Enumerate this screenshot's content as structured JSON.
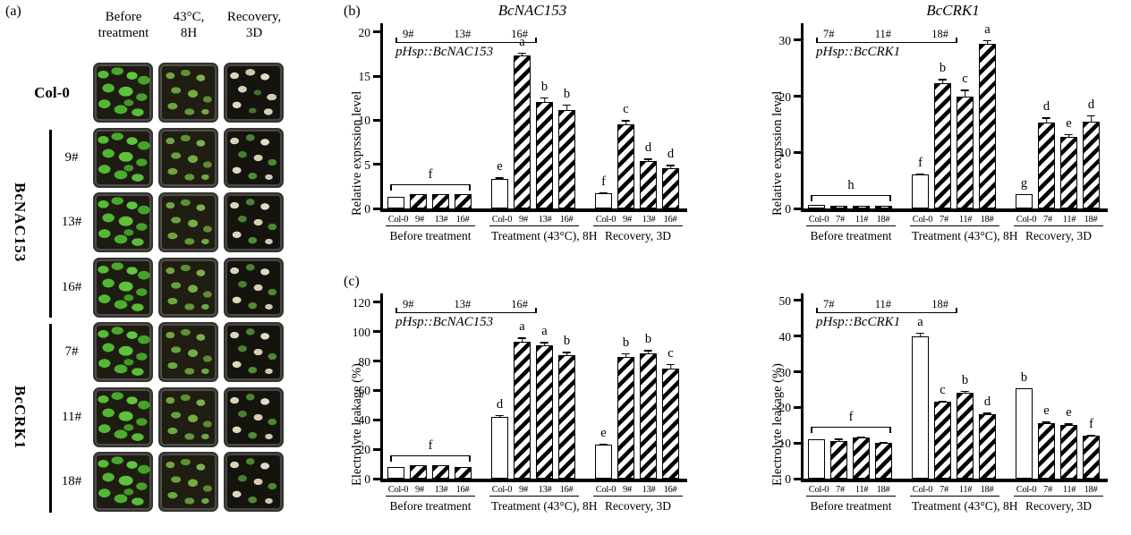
{
  "panel_a": {
    "label": "(a)",
    "col_headers": [
      {
        "line1": "Before",
        "line2": "treatment"
      },
      {
        "line1": "43°C,",
        "line2": "8H"
      },
      {
        "line1": "Recovery,",
        "line2": "3D"
      }
    ],
    "rows": [
      {
        "label": "Col-0",
        "bold": true
      },
      {
        "label": "9#"
      },
      {
        "label": "13#"
      },
      {
        "label": "16#"
      },
      {
        "label": "7#"
      },
      {
        "label": "11#"
      },
      {
        "label": "18#"
      }
    ],
    "groups": [
      {
        "label": "BcNAC153",
        "rows": [
          1,
          3
        ]
      },
      {
        "label": "BcCRK1",
        "rows": [
          4,
          6
        ]
      }
    ]
  },
  "panel_b_label": "(b)",
  "panel_c_label": "(c)",
  "chart_data": [
    {
      "type": "bar",
      "title": "BcNAC153",
      "ylabel": "Relative exprssion level",
      "ylim": [
        0,
        21
      ],
      "yticks": [
        0,
        5,
        10,
        15,
        20
      ],
      "annotation": {
        "lines": [
          "9#",
          "13#",
          "16#"
        ],
        "construct": "pHsp::BcNAC153"
      },
      "groups": [
        {
          "name": "Before treatment",
          "bracket_letter": "f",
          "bars": [
            {
              "label": "Col-0",
              "value": 1.3,
              "err": 0.1,
              "letter": "",
              "hatched": false
            },
            {
              "label": "9#",
              "value": 1.6,
              "err": 0.1,
              "letter": "",
              "hatched": true
            },
            {
              "label": "13#",
              "value": 1.6,
              "err": 0.1,
              "letter": "",
              "hatched": true
            },
            {
              "label": "16#",
              "value": 1.6,
              "err": 0.1,
              "letter": "",
              "hatched": true
            }
          ]
        },
        {
          "name": "Treatment (43°C), 8H",
          "bars": [
            {
              "label": "Col-0",
              "value": 3.4,
              "err": 0.15,
              "letter": "e",
              "hatched": false
            },
            {
              "label": "9#",
              "value": 17.4,
              "err": 0.3,
              "letter": "a",
              "hatched": true
            },
            {
              "label": "13#",
              "value": 12.1,
              "err": 0.5,
              "letter": "b",
              "hatched": true
            },
            {
              "label": "16#",
              "value": 11.2,
              "err": 0.6,
              "letter": "b",
              "hatched": true
            }
          ]
        },
        {
          "name": "Recovery, 3D",
          "bars": [
            {
              "label": "Col-0",
              "value": 1.7,
              "err": 0.15,
              "letter": "f",
              "hatched": false
            },
            {
              "label": "9#",
              "value": 9.5,
              "err": 0.5,
              "letter": "c",
              "hatched": true
            },
            {
              "label": "13#",
              "value": 5.4,
              "err": 0.25,
              "letter": "d",
              "hatched": true
            },
            {
              "label": "16#",
              "value": 4.6,
              "err": 0.35,
              "letter": "d",
              "hatched": true
            }
          ]
        }
      ]
    },
    {
      "type": "bar",
      "title": "BcCRK1",
      "ylabel": "Relative exprssion level",
      "ylim": [
        0,
        33
      ],
      "yticks": [
        0,
        10,
        20,
        30
      ],
      "annotation": {
        "lines": [
          "7#",
          "11#",
          "18#"
        ],
        "construct": "pHsp::BcCRK1"
      },
      "groups": [
        {
          "name": "Before treatment",
          "bracket_letter": "h",
          "bars": [
            {
              "label": "Col-0",
              "value": 0.7,
              "err": 0.05,
              "letter": "",
              "hatched": false
            },
            {
              "label": "7#",
              "value": 0.5,
              "err": 0.05,
              "letter": "",
              "hatched": true
            },
            {
              "label": "11#",
              "value": 0.5,
              "err": 0.05,
              "letter": "",
              "hatched": true
            },
            {
              "label": "18#",
              "value": 0.5,
              "err": 0.05,
              "letter": "",
              "hatched": true
            }
          ]
        },
        {
          "name": "Treatment (43°C), 8H",
          "bars": [
            {
              "label": "Col-0",
              "value": 6.0,
              "err": 0.2,
              "letter": "f",
              "hatched": false
            },
            {
              "label": "7#",
              "value": 22.3,
              "err": 0.8,
              "letter": "b",
              "hatched": true
            },
            {
              "label": "11#",
              "value": 20.0,
              "err": 1.2,
              "letter": "c",
              "hatched": true
            },
            {
              "label": "18#",
              "value": 29.3,
              "err": 0.7,
              "letter": "a",
              "hatched": true
            }
          ]
        },
        {
          "name": "Recovery, 3D",
          "bars": [
            {
              "label": "Col-0",
              "value": 2.5,
              "err": 0.15,
              "letter": "g",
              "hatched": false
            },
            {
              "label": "7#",
              "value": 15.3,
              "err": 0.9,
              "letter": "d",
              "hatched": true
            },
            {
              "label": "11#",
              "value": 12.8,
              "err": 0.5,
              "letter": "e",
              "hatched": true
            },
            {
              "label": "18#",
              "value": 15.5,
              "err": 1.1,
              "letter": "d",
              "hatched": true
            }
          ]
        }
      ]
    },
    {
      "type": "bar",
      "title": "",
      "ylabel": "Electrolyte leakage (%)",
      "ylim": [
        0,
        126
      ],
      "yticks": [
        0,
        20,
        40,
        60,
        80,
        100,
        120
      ],
      "annotation": {
        "lines": [
          "9#",
          "13#",
          "16#"
        ],
        "construct": "pHsp::BcNAC153"
      },
      "groups": [
        {
          "name": "Before treatment",
          "bracket_letter": "f",
          "bars": [
            {
              "label": "Col-0",
              "value": 8,
              "err": 0.5,
              "letter": "",
              "hatched": false
            },
            {
              "label": "9#",
              "value": 9,
              "err": 0.5,
              "letter": "",
              "hatched": true
            },
            {
              "label": "13#",
              "value": 9,
              "err": 0.5,
              "letter": "",
              "hatched": true
            },
            {
              "label": "16#",
              "value": 8,
              "err": 0.5,
              "letter": "",
              "hatched": true
            }
          ]
        },
        {
          "name": "Treatment (43°C), 8H",
          "bars": [
            {
              "label": "Col-0",
              "value": 42,
              "err": 1.5,
              "letter": "d",
              "hatched": false
            },
            {
              "label": "9#",
              "value": 93,
              "err": 3,
              "letter": "a",
              "hatched": true
            },
            {
              "label": "13#",
              "value": 91,
              "err": 2,
              "letter": "a",
              "hatched": true
            },
            {
              "label": "16#",
              "value": 84,
              "err": 2.5,
              "letter": "b",
              "hatched": true
            }
          ]
        },
        {
          "name": "Recovery, 3D",
          "bars": [
            {
              "label": "Col-0",
              "value": 23,
              "err": 1,
              "letter": "e",
              "hatched": false
            },
            {
              "label": "9#",
              "value": 83,
              "err": 2.5,
              "letter": "b",
              "hatched": true
            },
            {
              "label": "13#",
              "value": 85,
              "err": 2.5,
              "letter": "b",
              "hatched": true
            },
            {
              "label": "16#",
              "value": 75,
              "err": 3,
              "letter": "c",
              "hatched": true
            }
          ]
        }
      ]
    },
    {
      "type": "bar",
      "title": "",
      "ylabel": "Electrolyte leakage (%)",
      "ylim": [
        0,
        52
      ],
      "yticks": [
        0,
        10,
        20,
        30,
        40,
        50
      ],
      "annotation": {
        "lines": [
          "7#",
          "11#",
          "18#"
        ],
        "construct": "pHsp::BcCRK1"
      },
      "groups": [
        {
          "name": "Before treatment",
          "bracket_letter": "f",
          "bars": [
            {
              "label": "Col-0",
              "value": 11,
              "err": 0.3,
              "letter": "",
              "hatched": false
            },
            {
              "label": "7#",
              "value": 10.5,
              "err": 0.8,
              "letter": "",
              "hatched": true
            },
            {
              "label": "11#",
              "value": 11.5,
              "err": 0.4,
              "letter": "",
              "hatched": true
            },
            {
              "label": "18#",
              "value": 10,
              "err": 0.4,
              "letter": "",
              "hatched": true
            }
          ]
        },
        {
          "name": "Treatment (43°C), 8H",
          "bars": [
            {
              "label": "Col-0",
              "value": 40,
              "err": 1,
              "letter": "a",
              "hatched": false
            },
            {
              "label": "7#",
              "value": 21.5,
              "err": 0.4,
              "letter": "c",
              "hatched": true
            },
            {
              "label": "11#",
              "value": 24,
              "err": 0.7,
              "letter": "b",
              "hatched": true
            },
            {
              "label": "18#",
              "value": 18,
              "err": 0.6,
              "letter": "d",
              "hatched": true
            }
          ]
        },
        {
          "name": "Recovery, 3D",
          "bars": [
            {
              "label": "Col-0",
              "value": 25.5,
              "err": 0.3,
              "letter": "b",
              "hatched": false
            },
            {
              "label": "7#",
              "value": 15.5,
              "err": 0.5,
              "letter": "e",
              "hatched": true
            },
            {
              "label": "11#",
              "value": 15,
              "err": 0.5,
              "letter": "e",
              "hatched": true
            },
            {
              "label": "18#",
              "value": 12,
              "err": 0.4,
              "letter": "f",
              "hatched": true
            }
          ]
        }
      ]
    }
  ]
}
